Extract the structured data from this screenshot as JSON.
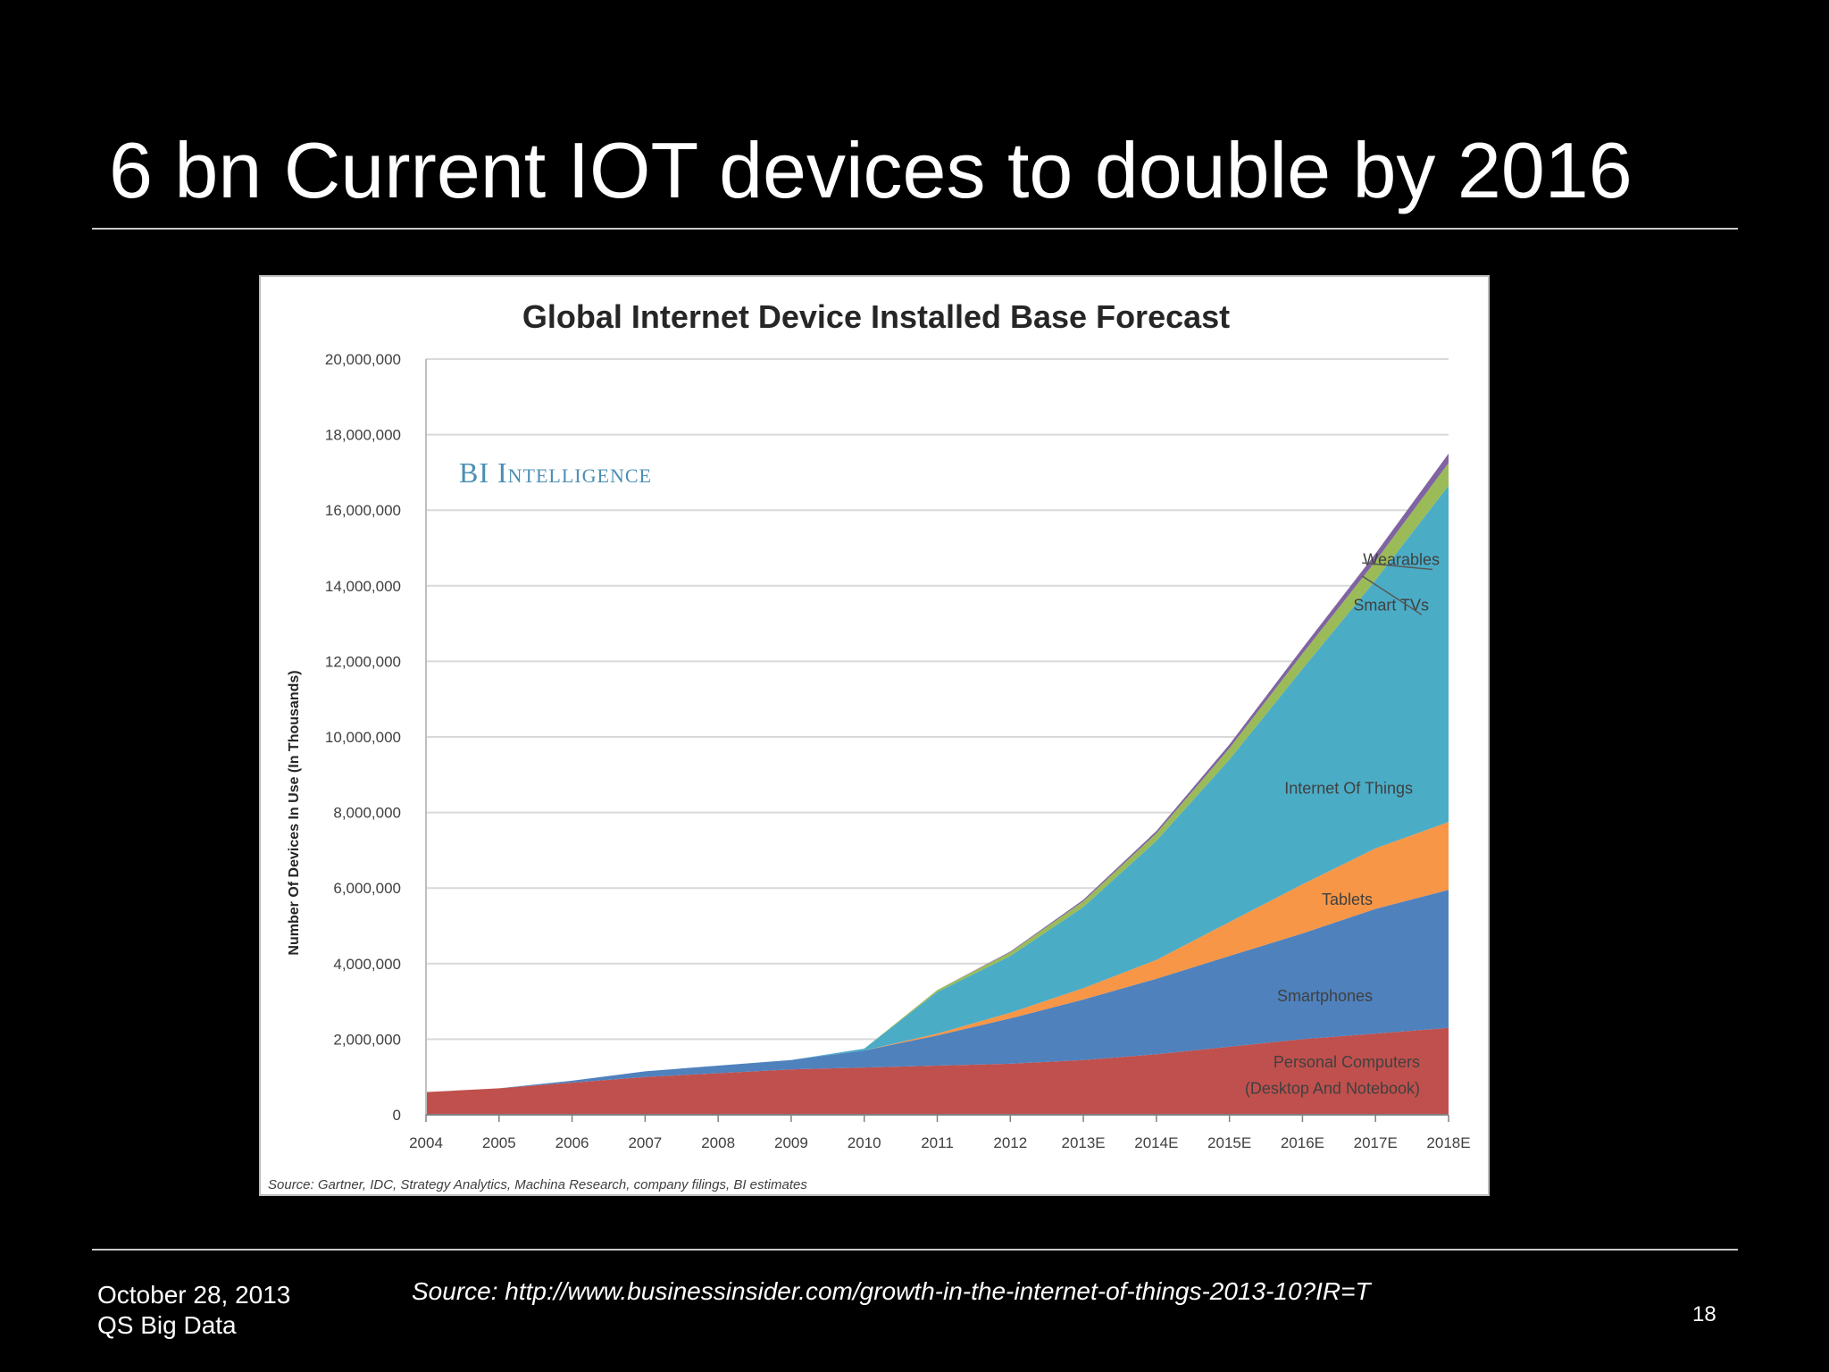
{
  "slide": {
    "title": "6 bn Current IOT devices to double by 2016",
    "date": "October 28, 2013",
    "org": "QS Big Data",
    "source": "Source: http://www.businessinsider.com/growth-in-the-internet-of-things-2013-10?IR=T",
    "page_number": "18"
  },
  "chart_data": {
    "type": "area",
    "stacked": true,
    "title": "Global Internet Device Installed Base Forecast",
    "watermark": "BI Intelligence",
    "ylabel": "Number Of Devices In Use (In Thousands)",
    "xlabel": "",
    "source_note": "Source: Gartner, IDC, Strategy Analytics, Machina Research, company filings, BI estimates",
    "ylim": [
      0,
      20000000
    ],
    "yticks": [
      0,
      2000000,
      4000000,
      6000000,
      8000000,
      10000000,
      12000000,
      14000000,
      16000000,
      18000000,
      20000000
    ],
    "ytick_labels": [
      "0",
      "2,000,000",
      "4,000,000",
      "6,000,000",
      "8,000,000",
      "10,000,000",
      "12,000,000",
      "14,000,000",
      "16,000,000",
      "18,000,000",
      "20,000,000"
    ],
    "grid": true,
    "categories": [
      "2004",
      "2005",
      "2006",
      "2007",
      "2008",
      "2009",
      "2010",
      "2011",
      "2012",
      "2013E",
      "2014E",
      "2015E",
      "2016E",
      "2017E",
      "2018E"
    ],
    "series": [
      {
        "name": "Personal Computers (Desktop And Notebook)",
        "color": "#c0504d",
        "values": [
          600000,
          700000,
          850000,
          1000000,
          1100000,
          1200000,
          1250000,
          1300000,
          1350000,
          1450000,
          1600000,
          1800000,
          2000000,
          2150000,
          2300000
        ]
      },
      {
        "name": "Smartphones",
        "color": "#4f81bd",
        "values": [
          0,
          0,
          50000,
          150000,
          200000,
          250000,
          450000,
          800000,
          1200000,
          1600000,
          2000000,
          2400000,
          2800000,
          3300000,
          3650000
        ]
      },
      {
        "name": "Tablets",
        "color": "#f79646",
        "values": [
          0,
          0,
          0,
          0,
          0,
          0,
          0,
          50000,
          150000,
          300000,
          500000,
          900000,
          1300000,
          1600000,
          1800000
        ]
      },
      {
        "name": "Internet Of Things",
        "color": "#4bacc6",
        "values": [
          0,
          0,
          0,
          0,
          0,
          0,
          50000,
          1100000,
          1500000,
          2150000,
          3150000,
          4300000,
          5700000,
          7100000,
          8900000
        ]
      },
      {
        "name": "Smart TVs",
        "color": "#9bbb59",
        "values": [
          0,
          0,
          0,
          0,
          0,
          0,
          0,
          50000,
          100000,
          150000,
          200000,
          300000,
          400000,
          500000,
          600000
        ]
      },
      {
        "name": "Wearables",
        "color": "#8064a2",
        "values": [
          0,
          0,
          0,
          0,
          0,
          0,
          0,
          0,
          20000,
          40000,
          60000,
          100000,
          150000,
          200000,
          250000
        ]
      }
    ],
    "annotations": [
      {
        "text": "Wearables",
        "series": "Wearables"
      },
      {
        "text": "Smart TVs",
        "series": "Smart TVs"
      },
      {
        "text": "Internet Of Things",
        "series": "Internet Of Things"
      },
      {
        "text": "Tablets",
        "series": "Tablets"
      },
      {
        "text": "Smartphones",
        "series": "Smartphones"
      },
      {
        "text": "Personal Computers",
        "series": "Personal Computers (Desktop And Notebook)"
      },
      {
        "text": "(Desktop And Notebook)",
        "series": "Personal Computers (Desktop And Notebook)"
      }
    ]
  }
}
